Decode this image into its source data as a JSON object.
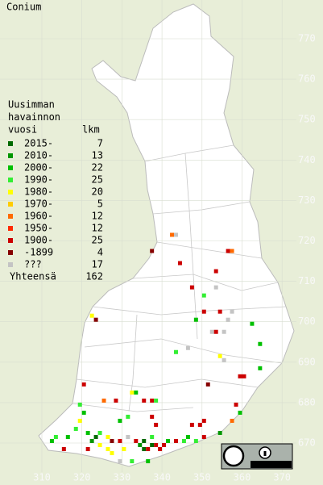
{
  "title": "Conium",
  "legend": {
    "heading": [
      "Uusimman",
      "havainnon",
      "vuosi"
    ],
    "count_header": "lkm",
    "rows": [
      {
        "label": "2015-",
        "count": 7,
        "color": "#006a00"
      },
      {
        "label": "2010-",
        "count": 13,
        "color": "#009600"
      },
      {
        "label": "2000-",
        "count": 22,
        "color": "#00c000"
      },
      {
        "label": "1990-",
        "count": 25,
        "color": "#33ee33"
      },
      {
        "label": "1980-",
        "count": 20,
        "color": "#ffff00"
      },
      {
        "label": "1970-",
        "count": 5,
        "color": "#ffcc00"
      },
      {
        "label": "1960-",
        "count": 12,
        "color": "#ff6a00"
      },
      {
        "label": "1950-",
        "count": 12,
        "color": "#ff2a00"
      },
      {
        "label": "1900-",
        "count": 25,
        "color": "#cc0000"
      },
      {
        "label": "-1899",
        "count": 4,
        "color": "#860000"
      },
      {
        "label": "???",
        "count": 17,
        "color": "#c4c4c4"
      }
    ],
    "total_label": "Yhteensä",
    "total": 162
  },
  "axes": {
    "xticks": [
      310,
      320,
      330,
      340,
      350,
      360,
      370
    ],
    "yticks": [
      670,
      680,
      690,
      700,
      710,
      720,
      730,
      740,
      750,
      760,
      770
    ]
  },
  "points": [
    [
      342,
      721,
      6
    ],
    [
      343,
      721,
      10
    ],
    [
      337,
      717,
      9
    ],
    [
      344,
      714,
      8
    ],
    [
      353,
      712,
      8
    ],
    [
      356,
      717,
      8
    ],
    [
      357,
      717,
      6
    ],
    [
      353,
      708,
      10
    ],
    [
      347,
      708,
      8
    ],
    [
      350,
      706,
      3
    ],
    [
      350,
      702,
      8
    ],
    [
      354,
      702,
      8
    ],
    [
      357,
      702,
      10
    ],
    [
      356,
      700,
      10
    ],
    [
      348,
      700,
      2
    ],
    [
      362,
      699,
      2
    ],
    [
      322,
      701,
      4
    ],
    [
      323,
      700,
      9
    ],
    [
      352,
      697,
      10
    ],
    [
      353,
      697,
      8
    ],
    [
      355,
      697,
      10
    ],
    [
      364,
      694,
      2
    ],
    [
      343,
      692,
      3
    ],
    [
      346,
      693,
      10
    ],
    [
      354,
      691,
      4
    ],
    [
      355,
      690,
      10
    ],
    [
      359,
      686,
      8
    ],
    [
      360,
      686,
      8
    ],
    [
      364,
      688,
      2
    ],
    [
      351,
      684,
      9
    ],
    [
      320,
      684,
      8
    ],
    [
      332,
      682,
      4
    ],
    [
      333,
      682,
      2
    ],
    [
      335,
      680,
      8
    ],
    [
      337,
      680,
      8
    ],
    [
      338,
      680,
      3
    ],
    [
      325,
      680,
      6
    ],
    [
      328,
      680,
      8
    ],
    [
      358,
      679,
      8
    ],
    [
      359,
      677,
      2
    ],
    [
      357,
      675,
      6
    ],
    [
      319,
      679,
      3
    ],
    [
      320,
      677,
      2
    ],
    [
      319,
      675,
      4
    ],
    [
      350,
      675,
      8
    ],
    [
      349,
      674,
      8
    ],
    [
      347,
      674,
      8
    ],
    [
      312,
      670,
      2
    ],
    [
      313,
      671,
      3
    ],
    [
      316,
      671,
      2
    ],
    [
      318,
      673,
      3
    ],
    [
      321,
      672,
      2
    ],
    [
      323,
      671,
      0
    ],
    [
      324,
      672,
      3
    ],
    [
      326,
      671,
      4
    ],
    [
      327,
      670,
      9
    ],
    [
      329,
      670,
      8
    ],
    [
      331,
      671,
      10
    ],
    [
      333,
      670,
      8
    ],
    [
      335,
      668,
      0
    ],
    [
      336,
      668,
      8
    ],
    [
      338,
      669,
      8
    ],
    [
      339,
      668,
      8
    ],
    [
      341,
      670,
      2
    ],
    [
      343,
      670,
      8
    ],
    [
      345,
      670,
      3
    ],
    [
      346,
      671,
      2
    ],
    [
      348,
      670,
      3
    ],
    [
      350,
      671,
      8
    ],
    [
      354,
      672,
      1
    ],
    [
      326,
      668,
      4
    ],
    [
      321,
      668,
      8
    ],
    [
      315,
      668,
      8
    ],
    [
      332,
      665,
      3
    ],
    [
      336,
      665,
      2
    ],
    [
      329,
      665,
      10
    ],
    [
      327,
      667,
      4
    ],
    [
      337,
      671,
      3
    ],
    [
      338,
      674,
      8
    ],
    [
      329,
      675,
      2
    ],
    [
      337,
      676,
      8
    ],
    [
      331,
      676,
      3
    ],
    [
      334,
      669,
      1
    ],
    [
      335,
      670,
      0
    ],
    [
      337,
      669,
      0
    ],
    [
      340,
      669,
      8
    ],
    [
      330,
      668,
      4
    ],
    [
      322,
      670,
      1
    ],
    [
      324,
      669,
      4
    ]
  ]
}
